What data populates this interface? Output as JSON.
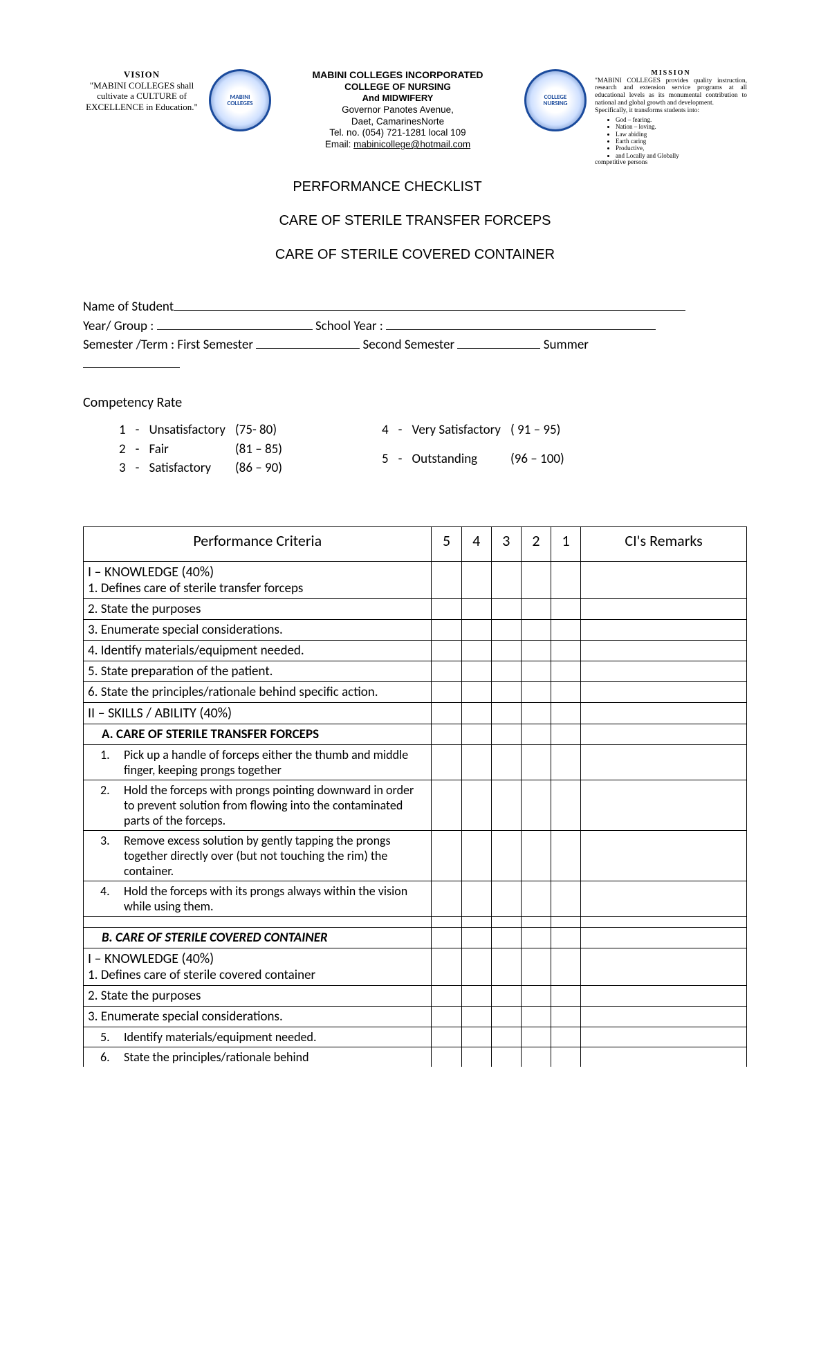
{
  "vision": {
    "heading": "VISION",
    "body": "\"MABINI COLLEGES shall cultivate a CULTURE of EXCELLENCE in Education.\""
  },
  "center": {
    "line1": "MABINI COLLEGES INCORPORATED",
    "line2": "COLLEGE OF NURSING",
    "line3": "And MIDWIFERY",
    "addr1": "Governor Panotes Avenue,",
    "addr2": "Daet, CamarinesNorte",
    "tel": "Tel. no. (054) 721-1281 local 109",
    "email_label": "Email:",
    "email": "mabinicollege@hotmail.com"
  },
  "mission": {
    "heading": "MISSION",
    "body": "\"MABINI COLLEGES provides quality instruction, research and extension service programs at all educational levels as its monumental contribution to national and global growth and development.",
    "spec": "Specifically, it transforms students into:",
    "items": [
      "God – fearing.",
      "Nation – loving.",
      "Law abiding",
      "Earth caring",
      "Productive,",
      "and Locally and Globally"
    ],
    "tail": "competitive persons"
  },
  "titles": {
    "t1": "PERFORMANCE CHECKLIST",
    "t2": "CARE OF STERILE TRANSFER FORCEPS",
    "t3": "CARE OF STERILE COVERED CONTAINER"
  },
  "info": {
    "name_label": "Name of Student",
    "year_label": "Year/ Group  :",
    "sy_label": "School Year :",
    "sem_label": "Semester /Term : First Semester",
    "sem2": "Second Semester",
    "sem3": "Summer"
  },
  "comp": {
    "heading": "Competency Rate",
    "left": [
      {
        "n": "1",
        "dash": "-",
        "label": "Unsatisfactory",
        "range": "(75- 80)"
      },
      {
        "n": "2",
        "dash": "-",
        "label": "Fair",
        "range": "(81 – 85)"
      },
      {
        "n": "3",
        "dash": "-",
        "label": "Satisfactory",
        "range": "(86 – 90)"
      }
    ],
    "right": [
      {
        "n": "4",
        "dash": "-",
        "label": "Very Satisfactory",
        "range": "( 91 – 95)"
      },
      {
        "n": "5",
        "dash": "-",
        "label": "Outstanding",
        "range": "(96 – 100)"
      }
    ]
  },
  "table": {
    "headers": {
      "pc": "Performance Criteria",
      "c5": "5",
      "c4": "4",
      "c3": "3",
      "c2": "2",
      "c1": "1",
      "rem": "CI's Remarks"
    },
    "rows": [
      {
        "type": "section",
        "text": "I – KNOWLEDGE (40%)\n1. Defines care of sterile transfer forceps"
      },
      {
        "type": "plain",
        "text": "2. State the purposes"
      },
      {
        "type": "plain",
        "text": "3. Enumerate special considerations."
      },
      {
        "type": "plain",
        "text": "4. Identify materials/equipment needed."
      },
      {
        "type": "plain",
        "text": "5. State preparation of the patient."
      },
      {
        "type": "justify",
        "text": "6. State the principles/rationale behind specific action."
      },
      {
        "type": "section2",
        "text": "II – SKILLS / ABILITY (40%)"
      },
      {
        "type": "bold-indent",
        "text": "A. CARE OF STERILE TRANSFER FORCEPS"
      },
      {
        "type": "proc",
        "n": "1.",
        "text": "Pick up a handle of forceps either the thumb and middle finger, keeping prongs together"
      },
      {
        "type": "proc",
        "n": "2.",
        "text": "Hold the forceps with prongs pointing downward in order to prevent solution from flowing into the contaminated parts of the forceps."
      },
      {
        "type": "proc",
        "n": "3.",
        "text": "Remove excess solution by gently tapping the prongs together directly over (but not touching the rim) the container."
      },
      {
        "type": "proc",
        "n": "4.",
        "text": "Hold the forceps with its prongs always within the vision while using them."
      },
      {
        "type": "spacer"
      },
      {
        "type": "bold-indent-i",
        "text": "B.   CARE OF STERILE COVERED CONTAINER"
      },
      {
        "type": "section",
        "text": "I – KNOWLEDGE (40%)\n1. Defines care of sterile covered container"
      },
      {
        "type": "plain",
        "text": "2. State the purposes"
      },
      {
        "type": "plain",
        "text": "3. Enumerate special considerations."
      },
      {
        "type": "proc-j",
        "n": "5.",
        "text": "Identify materials/equipment needed."
      },
      {
        "type": "proc-j-nob",
        "n": "6.",
        "text": "State the principles/rationale behind"
      }
    ]
  }
}
